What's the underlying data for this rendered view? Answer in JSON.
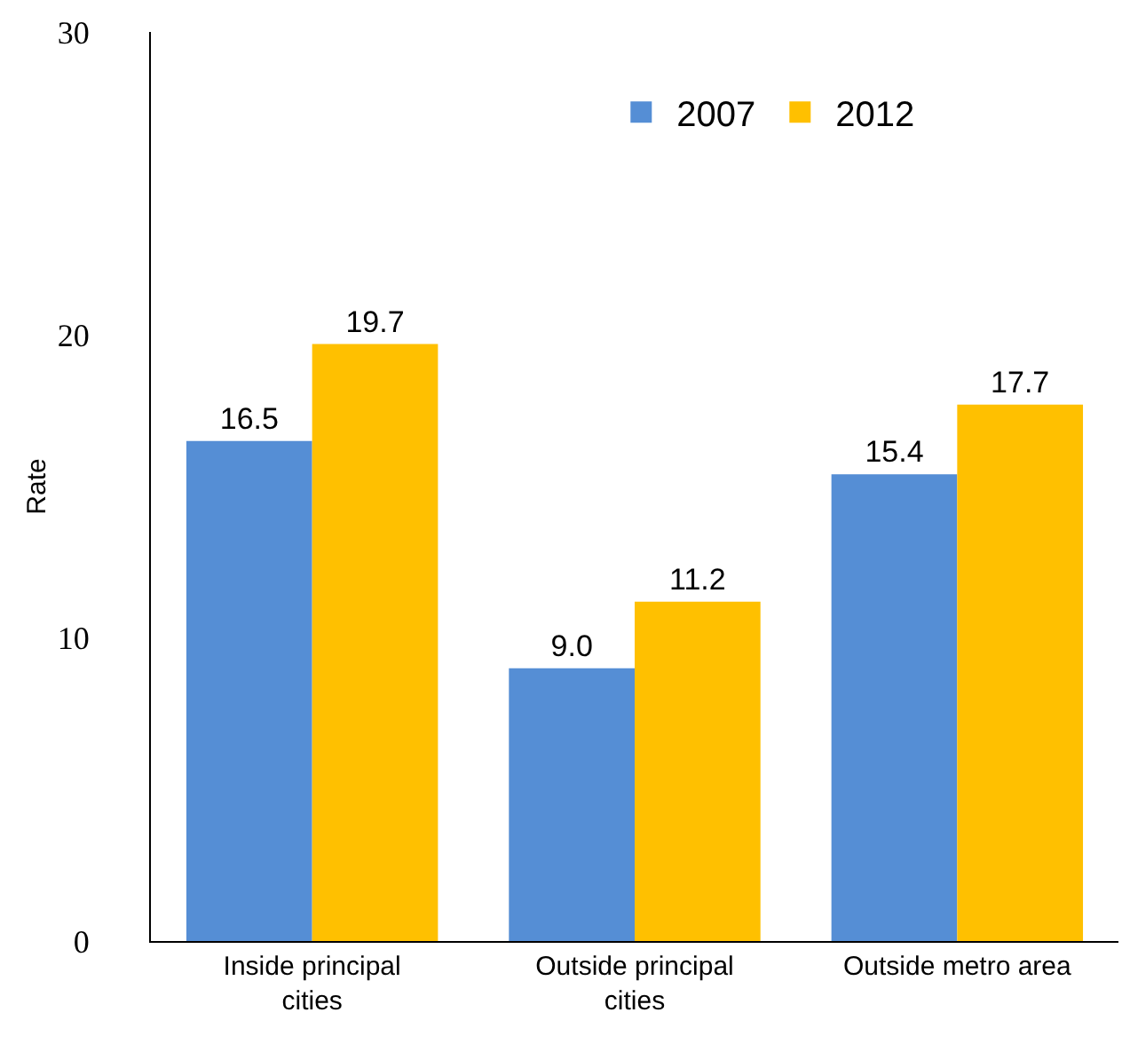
{
  "chart_data": {
    "type": "bar",
    "ylabel": "Rate",
    "categories": [
      "Inside principal cities",
      "Outside principal cities",
      "Outside metro area"
    ],
    "series": [
      {
        "name": "2007",
        "color": "#558ed5",
        "values": [
          16.5,
          9.0,
          15.4
        ],
        "value_labels": [
          "16.5",
          "9.0",
          "15.4"
        ]
      },
      {
        "name": "2012",
        "color": "#ffc000",
        "values": [
          19.7,
          11.2,
          17.7
        ],
        "value_labels": [
          "19.7",
          "11.2",
          "17.7"
        ]
      }
    ],
    "ylim": [
      0,
      30
    ],
    "yticks": [
      0,
      10,
      20,
      30
    ],
    "legend": "top right"
  }
}
